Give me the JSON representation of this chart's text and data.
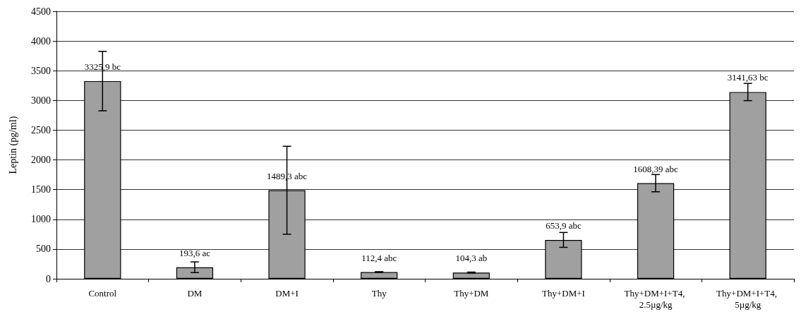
{
  "chart_data": {
    "type": "bar",
    "ylabel": "Leptin (pg/ml)",
    "categories": [
      "Control",
      "DM",
      "DM+I",
      "Thy",
      "Thy+DM",
      "Thy+DM+I",
      "Thy+DM+I+T4, 2.5µg/kg",
      "Thy+DM+I+T4, 5µg/kg"
    ],
    "values": [
      3325.9,
      193.6,
      1489.3,
      112.4,
      104.3,
      653.9,
      1608.39,
      3141.63
    ],
    "value_labels": [
      "3325,9 bc",
      "193,6 ac",
      "1489,3 abc",
      "112,4 abc",
      "104,3 ab",
      "653,9 abc",
      "1608,39 abc",
      "3141,63 bc"
    ],
    "errors": [
      500,
      90,
      740,
      8,
      8,
      125,
      145,
      145
    ],
    "color": "#a0a0a0",
    "ylim": [
      0,
      4500
    ],
    "yticks": [
      0,
      500,
      1000,
      1500,
      2000,
      2500,
      3000,
      3500,
      4000,
      4500
    ],
    "grid": "y"
  }
}
